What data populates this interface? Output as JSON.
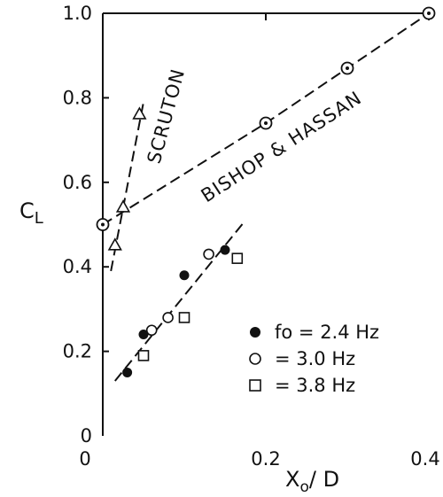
{
  "chart_data": {
    "type": "scatter",
    "xlabel": "Xo/D",
    "ylabel": "CL",
    "xlim": [
      0,
      0.4
    ],
    "ylim": [
      0,
      1.0
    ],
    "x_ticks": [
      "0",
      "0.2",
      "0.4"
    ],
    "y_ticks": [
      "0",
      "0.2",
      "0.4",
      "0.6",
      "0.8",
      "1.0"
    ],
    "grid": false,
    "legend_position": "lower-right",
    "series": [
      {
        "name": "fo = 2.4 Hz",
        "marker": "filled-circle",
        "points": [
          [
            0.03,
            0.15
          ],
          [
            0.05,
            0.24
          ],
          [
            0.1,
            0.38
          ],
          [
            0.15,
            0.44
          ]
        ]
      },
      {
        "name": "= 3.0 Hz",
        "marker": "open-circle",
        "points": [
          [
            0.06,
            0.25
          ],
          [
            0.08,
            0.28
          ],
          [
            0.13,
            0.43
          ]
        ]
      },
      {
        "name": "= 3.8 Hz",
        "marker": "open-square",
        "points": [
          [
            0.05,
            0.19
          ],
          [
            0.1,
            0.28
          ],
          [
            0.165,
            0.42
          ]
        ]
      },
      {
        "name": "BISHOP & HASSAN",
        "marker": "dotted-circle",
        "points": [
          [
            0.0,
            0.5
          ],
          [
            0.2,
            0.74
          ],
          [
            0.3,
            0.87
          ],
          [
            0.4,
            1.0
          ]
        ]
      },
      {
        "name": "SCRUTON",
        "marker": "triangle",
        "points": [
          [
            0.015,
            0.45
          ],
          [
            0.025,
            0.54
          ],
          [
            0.045,
            0.76
          ]
        ]
      }
    ],
    "lines": [
      {
        "name": "fit",
        "x": [
          0.015,
          0.175
        ],
        "y": [
          0.13,
          0.51
        ]
      },
      {
        "name": "BISHOP & HASSAN",
        "x": [
          0.0,
          0.2,
          0.3,
          0.4
        ],
        "y": [
          0.5,
          0.74,
          0.87,
          1.0
        ]
      },
      {
        "name": "SCRUTON",
        "x": [
          0.01,
          0.05
        ],
        "y": [
          0.39,
          0.79
        ]
      }
    ],
    "annotations": [
      "SCRUTON",
      "BISHOP & HASSAN"
    ],
    "legend": [
      {
        "symbol": "filled-circle",
        "label": "fo = 2.4 Hz"
      },
      {
        "symbol": "open-circle",
        "label": "= 3.0 Hz"
      },
      {
        "symbol": "open-square",
        "label": "= 3.8 Hz"
      }
    ]
  }
}
